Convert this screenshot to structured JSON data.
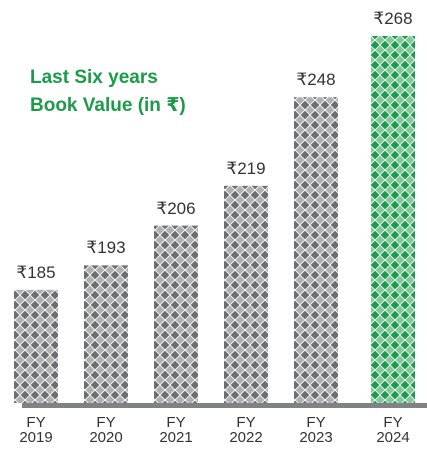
{
  "chart_data": {
    "type": "bar",
    "title": "Last Six years\nBook Value (in ₹)",
    "categories": [
      "FY\n2019",
      "FY\n2020",
      "FY\n2021",
      "FY\n2022",
      "FY\n2023",
      "FY\n2024"
    ],
    "values": [
      185,
      193,
      206,
      219,
      248,
      268
    ],
    "value_labels": [
      "₹185",
      "₹193",
      "₹206",
      "₹219",
      "₹248",
      "₹268"
    ],
    "colors": [
      "#6d6e71",
      "#6d6e71",
      "#6d6e71",
      "#6d6e71",
      "#6d6e71",
      "#1a9c48"
    ],
    "ylim": [
      148,
      268
    ]
  }
}
